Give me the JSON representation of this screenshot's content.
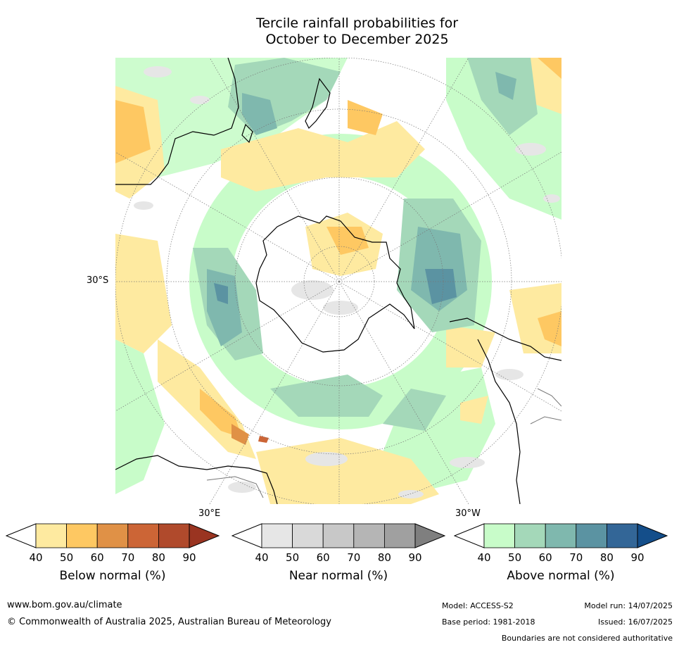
{
  "title": {
    "line1": "Tercile rainfall probabilities for",
    "line2": "October to December 2025"
  },
  "map": {
    "lat_label": "30°S",
    "lon_label_east": "30°E",
    "lon_label_west": "30°W",
    "projection": "south polar stereographic",
    "ocean_color": "#ffffff"
  },
  "colorbars": [
    {
      "name": "Below normal (%)",
      "ticks": [
        "40",
        "50",
        "60",
        "70",
        "80",
        "90"
      ],
      "colors": [
        "#ffffff",
        "#feeaa0",
        "#fec862",
        "#e09146",
        "#cc6536",
        "#b04a2c",
        "#9a3421"
      ]
    },
    {
      "name": "Near normal (%)",
      "ticks": [
        "40",
        "50",
        "60",
        "70",
        "80",
        "90"
      ],
      "colors": [
        "#ffffff",
        "#e6e6e6",
        "#d9d9d9",
        "#c8c8c8",
        "#b5b5b5",
        "#a0a0a0",
        "#7f7f7f"
      ]
    },
    {
      "name": "Above normal (%)",
      "ticks": [
        "40",
        "50",
        "60",
        "70",
        "80",
        "90"
      ],
      "colors": [
        "#ffffff",
        "#c8fcc9",
        "#a4d8b9",
        "#7fb8ae",
        "#5b93a2",
        "#336697",
        "#144e8a"
      ]
    }
  ],
  "footer": {
    "url": "www.bom.gov.au/climate",
    "copyright": "© Commonwealth of Australia 2025, Australian Bureau of Meteorology",
    "model": "Model: ACCESS-S2",
    "base_period": "Base period: 1981-2018",
    "model_run": "Model run: 14/07/2025",
    "issued": "Issued: 16/07/2025",
    "disclaimer": "Boundaries are not considered authoritative"
  }
}
